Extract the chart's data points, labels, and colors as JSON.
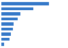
{
  "values": [
    161.0,
    108.0,
    65.0,
    55.0,
    42.0,
    38.0,
    33.0,
    28.0,
    10.0
  ],
  "bar_color": "#3478c8",
  "background_color": "#ffffff",
  "plot_bg_color": "#f5f5f5",
  "xlim": [
    0,
    220
  ],
  "bar_height": 0.6
}
